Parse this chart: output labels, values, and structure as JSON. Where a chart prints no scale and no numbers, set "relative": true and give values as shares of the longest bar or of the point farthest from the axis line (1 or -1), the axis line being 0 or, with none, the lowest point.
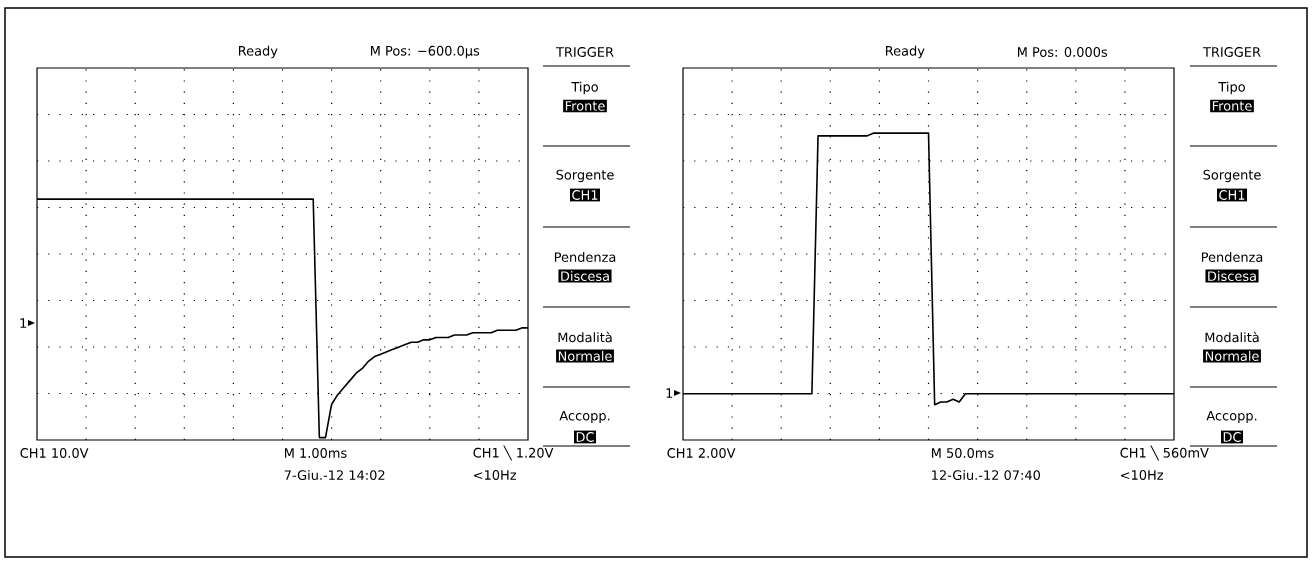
{
  "chart_data": [
    {
      "type": "line",
      "relative": true,
      "grid": true,
      "categories": [
        null,
        null,
        null,
        null,
        null,
        null,
        null,
        null,
        null,
        null,
        null,
        null,
        null,
        null,
        null,
        null,
        null,
        null,
        null,
        null,
        null,
        null,
        null,
        null,
        null,
        null,
        null,
        null,
        null,
        null,
        null,
        null,
        null,
        null,
        null,
        null,
        null,
        null,
        null,
        null,
        null,
        null,
        null,
        null,
        null,
        null,
        null,
        null,
        null,
        null,
        null,
        null,
        null,
        null,
        null,
        null,
        null,
        null,
        null,
        null,
        null,
        null,
        null,
        null,
        null,
        null,
        null,
        null,
        null,
        null,
        null,
        null,
        null,
        null,
        null,
        null,
        null,
        null,
        null,
        null,
        null
      ],
      "series": [
        {
          "color": "#000000",
          "values": [
            1,
            1,
            1,
            1,
            1,
            1,
            1,
            1,
            1,
            1,
            1,
            1,
            1,
            1,
            1,
            1,
            1,
            1,
            1,
            1,
            1,
            1,
            1,
            1,
            1,
            1,
            1,
            1,
            1,
            1,
            1,
            1,
            1,
            1,
            1,
            1,
            1,
            1,
            1,
            1,
            1,
            1,
            1,
            1,
            1,
            1,
            0,
            0,
            0.14,
            0.18,
            0.21,
            0.24,
            0.27,
            0.29,
            0.32,
            0.34,
            0.35,
            0.36,
            0.37,
            0.38,
            0.39,
            0.4,
            0.4,
            0.41,
            0.41,
            0.42,
            0.42,
            0.42,
            0.43,
            0.43,
            0.43,
            0.44,
            0.44,
            0.44,
            0.44,
            0.45,
            0.45,
            0.45,
            0.45,
            0.46,
            0.46
          ]
        }
      ],
      "annotations": [
        "Ready",
        "M Pos: −600.0µs",
        "TRIGGER",
        "Tipo",
        "Fronte",
        "Sorgente",
        "CH1",
        "Pendenza",
        "Discesa",
        "Modalità",
        "Normale",
        "Accopp.",
        "DC",
        "CH1 10.0V",
        "M 1.00ms",
        "CH1 ╲ 1.20V",
        "7-Giu.-12 14:02",
        "<10Hz",
        "1"
      ]
    },
    {
      "type": "line",
      "relative": true,
      "grid": true,
      "categories": [
        null,
        null,
        null,
        null,
        null,
        null,
        null,
        null,
        null,
        null,
        null,
        null,
        null,
        null,
        null,
        null,
        null,
        null,
        null,
        null,
        null,
        null,
        null,
        null,
        null,
        null,
        null,
        null,
        null,
        null,
        null,
        null,
        null,
        null,
        null,
        null,
        null,
        null,
        null,
        null,
        null,
        null,
        null,
        null,
        null,
        null,
        null,
        null,
        null,
        null,
        null,
        null,
        null,
        null,
        null,
        null,
        null,
        null,
        null,
        null,
        null,
        null,
        null,
        null,
        null,
        null,
        null,
        null,
        null,
        null,
        null,
        null,
        null,
        null,
        null,
        null,
        null,
        null,
        null,
        null,
        null
      ],
      "series": [
        {
          "color": "#000000",
          "values": [
            0.04,
            0.04,
            0.04,
            0.04,
            0.04,
            0.04,
            0.04,
            0.04,
            0.04,
            0.04,
            0.04,
            0.04,
            0.04,
            0.04,
            0.04,
            0.04,
            0.04,
            0.04,
            0.04,
            0.04,
            0.04,
            0.04,
            0.99,
            0.99,
            0.99,
            0.99,
            0.99,
            0.99,
            0.99,
            0.99,
            0.99,
            1,
            1,
            1,
            1,
            1,
            1,
            1,
            1,
            1,
            1,
            0,
            0.01,
            0.01,
            0.02,
            0.01,
            0.04,
            0.04,
            0.04,
            0.04,
            0.04,
            0.04,
            0.04,
            0.04,
            0.04,
            0.04,
            0.04,
            0.04,
            0.04,
            0.04,
            0.04,
            0.04,
            0.04,
            0.04,
            0.04,
            0.04,
            0.04,
            0.04,
            0.04,
            0.04,
            0.04,
            0.04,
            0.04,
            0.04,
            0.04,
            0.04,
            0.04,
            0.04,
            0.04,
            0.04,
            0.04
          ]
        }
      ],
      "annotations": [
        "Ready",
        "M Pos: 0.000s",
        "TRIGGER",
        "Tipo",
        "Fronte",
        "Sorgente",
        "CH1",
        "Pendenza",
        "Discesa",
        "Modalità",
        "Normale",
        "Accopp.",
        "DC",
        "CH1 2.00V",
        "M 50.0ms",
        "CH1 ╲ 560mV",
        "12-Giu.-12 07:40",
        "<10Hz",
        "1"
      ]
    }
  ]
}
